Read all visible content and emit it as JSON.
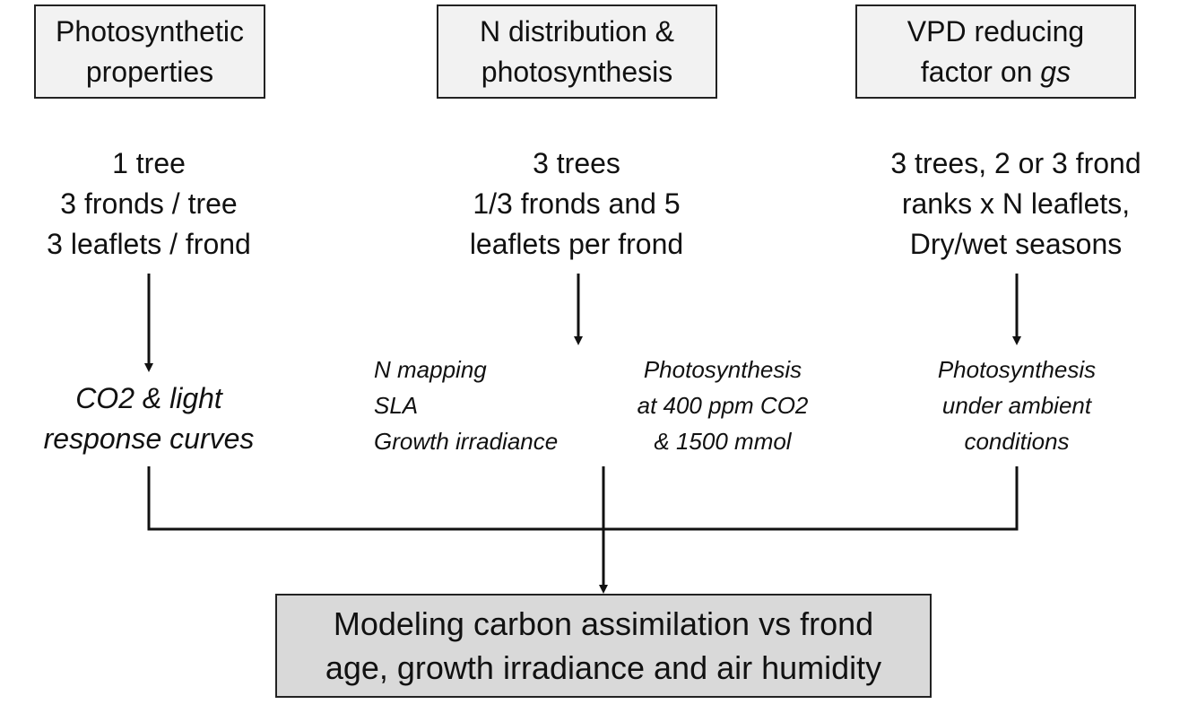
{
  "top_boxes": {
    "photosynthetic": {
      "line1": "Photosynthetic",
      "line2": "properties"
    },
    "n_distribution": {
      "line1": "N distribution &",
      "line2": "photosynthesis"
    },
    "vpd": {
      "line1": "VPD reducing",
      "line2_prefix": "factor on ",
      "line2_italic": "gs"
    }
  },
  "samples": {
    "left": [
      "1 tree",
      "3 fronds / tree",
      "3 leaflets / frond"
    ],
    "middle": [
      "3 trees",
      "1/3 fronds and 5",
      "leaflets per frond"
    ],
    "right": [
      "3 trees, 2 or 3 frond",
      "ranks x N leaflets,",
      "Dry/wet seasons"
    ]
  },
  "measurements": {
    "left": [
      "CO2 & light",
      "response curves"
    ],
    "middle_a": [
      "N mapping",
      "SLA",
      "Growth irradiance"
    ],
    "middle_b": [
      "Photosynthesis",
      "at 400 ppm CO2",
      "& 1500 mmol"
    ],
    "right": [
      "Photosynthesis",
      "under ambient",
      "conditions"
    ]
  },
  "result_box": {
    "line1": "Modeling carbon assimilation vs frond",
    "line2": "age, growth irradiance and air humidity"
  }
}
